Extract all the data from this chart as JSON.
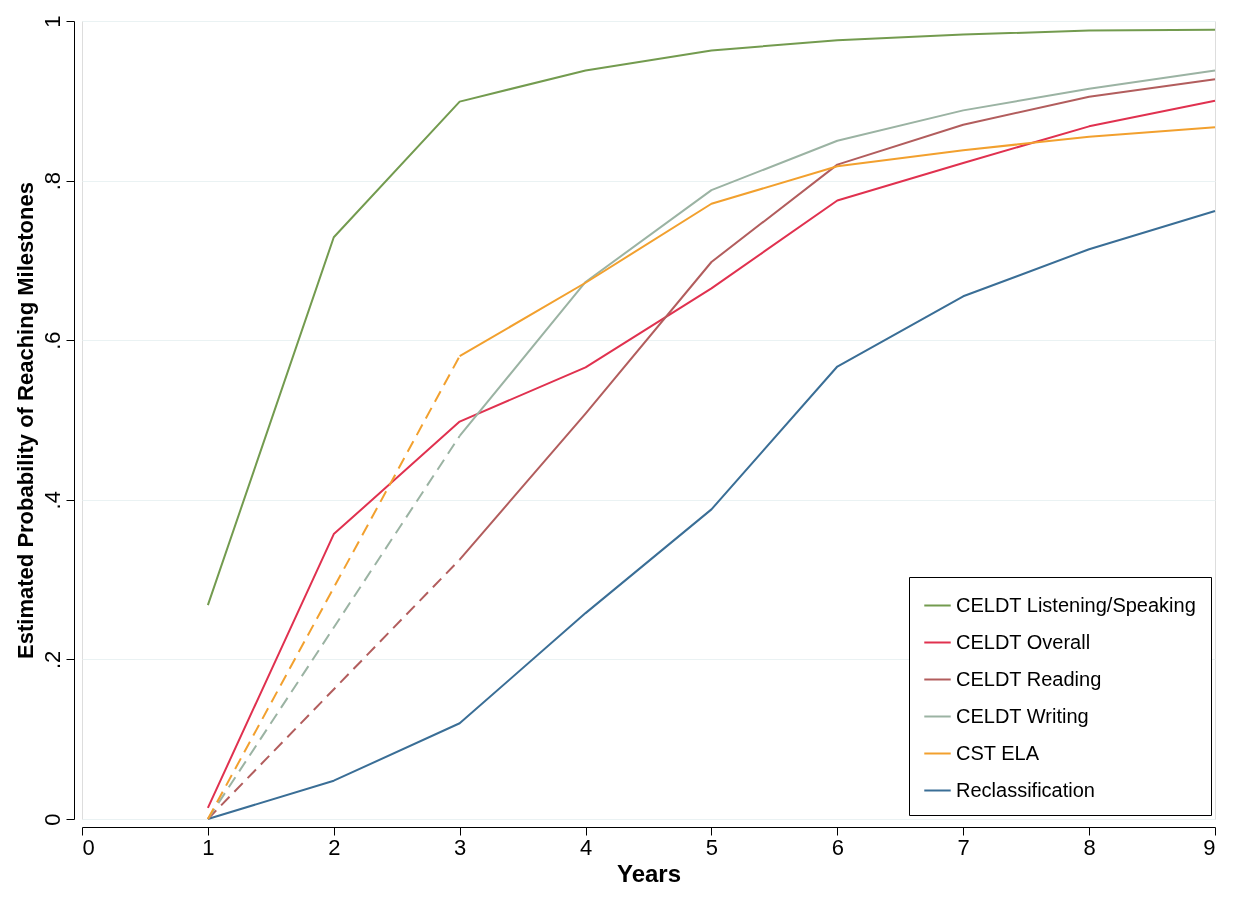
{
  "chart_data": {
    "type": "line",
    "xlabel": "Years",
    "ylabel": "Estimated Probability of Reaching Milestones",
    "xlim": [
      0,
      9
    ],
    "xticks": [
      0,
      1,
      2,
      3,
      4,
      5,
      6,
      7,
      8,
      9
    ],
    "ylim": [
      0,
      1
    ],
    "yticks": [
      0,
      {
        "value": 0.2,
        "label": ".2"
      },
      {
        "value": 0.4,
        "label": ".4"
      },
      {
        "value": 0.6,
        "label": ".6"
      },
      {
        "value": 0.8,
        "label": ".8"
      },
      1
    ],
    "grid": "y",
    "legend": "bottom right",
    "marker": "none",
    "series": [
      {
        "name": "CELDT Listening/Speaking",
        "color": "#739b4f",
        "line_style": "solid",
        "x": [
          1,
          2,
          3,
          4,
          5,
          6,
          7,
          8,
          9
        ],
        "values": [
          0.268,
          0.729,
          0.899,
          0.938,
          0.963,
          0.976,
          0.983,
          0.988,
          0.989
        ]
      },
      {
        "name": "CELDT Overall",
        "color": "#e0314f",
        "line_style": "solid",
        "x": [
          1,
          2,
          3,
          4,
          5,
          6,
          7,
          8,
          9
        ],
        "values": [
          0.014,
          0.357,
          0.498,
          0.566,
          0.665,
          0.775,
          0.822,
          0.868,
          0.9
        ]
      },
      {
        "name": "CELDT Reading",
        "color": "#b25d5d",
        "line_style": "solid",
        "x": [
          3,
          4,
          5,
          6,
          7,
          8,
          9
        ],
        "values": [
          0.325,
          0.508,
          0.698,
          0.82,
          0.87,
          0.905,
          0.927
        ]
      },
      {
        "name": "CELDT Writing",
        "color": "#9bb3a3",
        "line_style": "solid",
        "x": [
          3,
          4,
          5,
          6,
          7,
          8,
          9
        ],
        "values": [
          0.48,
          0.673,
          0.788,
          0.85,
          0.888,
          0.915,
          0.938
        ]
      },
      {
        "name": "CST ELA",
        "color": "#f2a02e",
        "line_style": "solid",
        "x": [
          3,
          4,
          5,
          6,
          7,
          8,
          9
        ],
        "values": [
          0.58,
          0.672,
          0.771,
          0.818,
          0.838,
          0.855,
          0.867
        ]
      },
      {
        "name": "Reclassification",
        "color": "#3a6e96",
        "line_style": "solid",
        "x": [
          1,
          2,
          3,
          4,
          5,
          6,
          7,
          8,
          9
        ],
        "values": [
          0,
          0.048,
          0.12,
          0.258,
          0.388,
          0.567,
          0.655,
          0.714,
          0.762
        ]
      },
      {
        "color": "#b25d5d",
        "line_style": "dashed",
        "x": [
          1,
          3
        ],
        "values": [
          0,
          0.325
        ]
      },
      {
        "color": "#9bb3a3",
        "line_style": "dashed",
        "x": [
          1,
          3
        ],
        "values": [
          0,
          0.48
        ]
      },
      {
        "color": "#f2a02e",
        "line_style": "dashed",
        "x": [
          1,
          3
        ],
        "values": [
          0,
          0.58
        ]
      }
    ]
  }
}
